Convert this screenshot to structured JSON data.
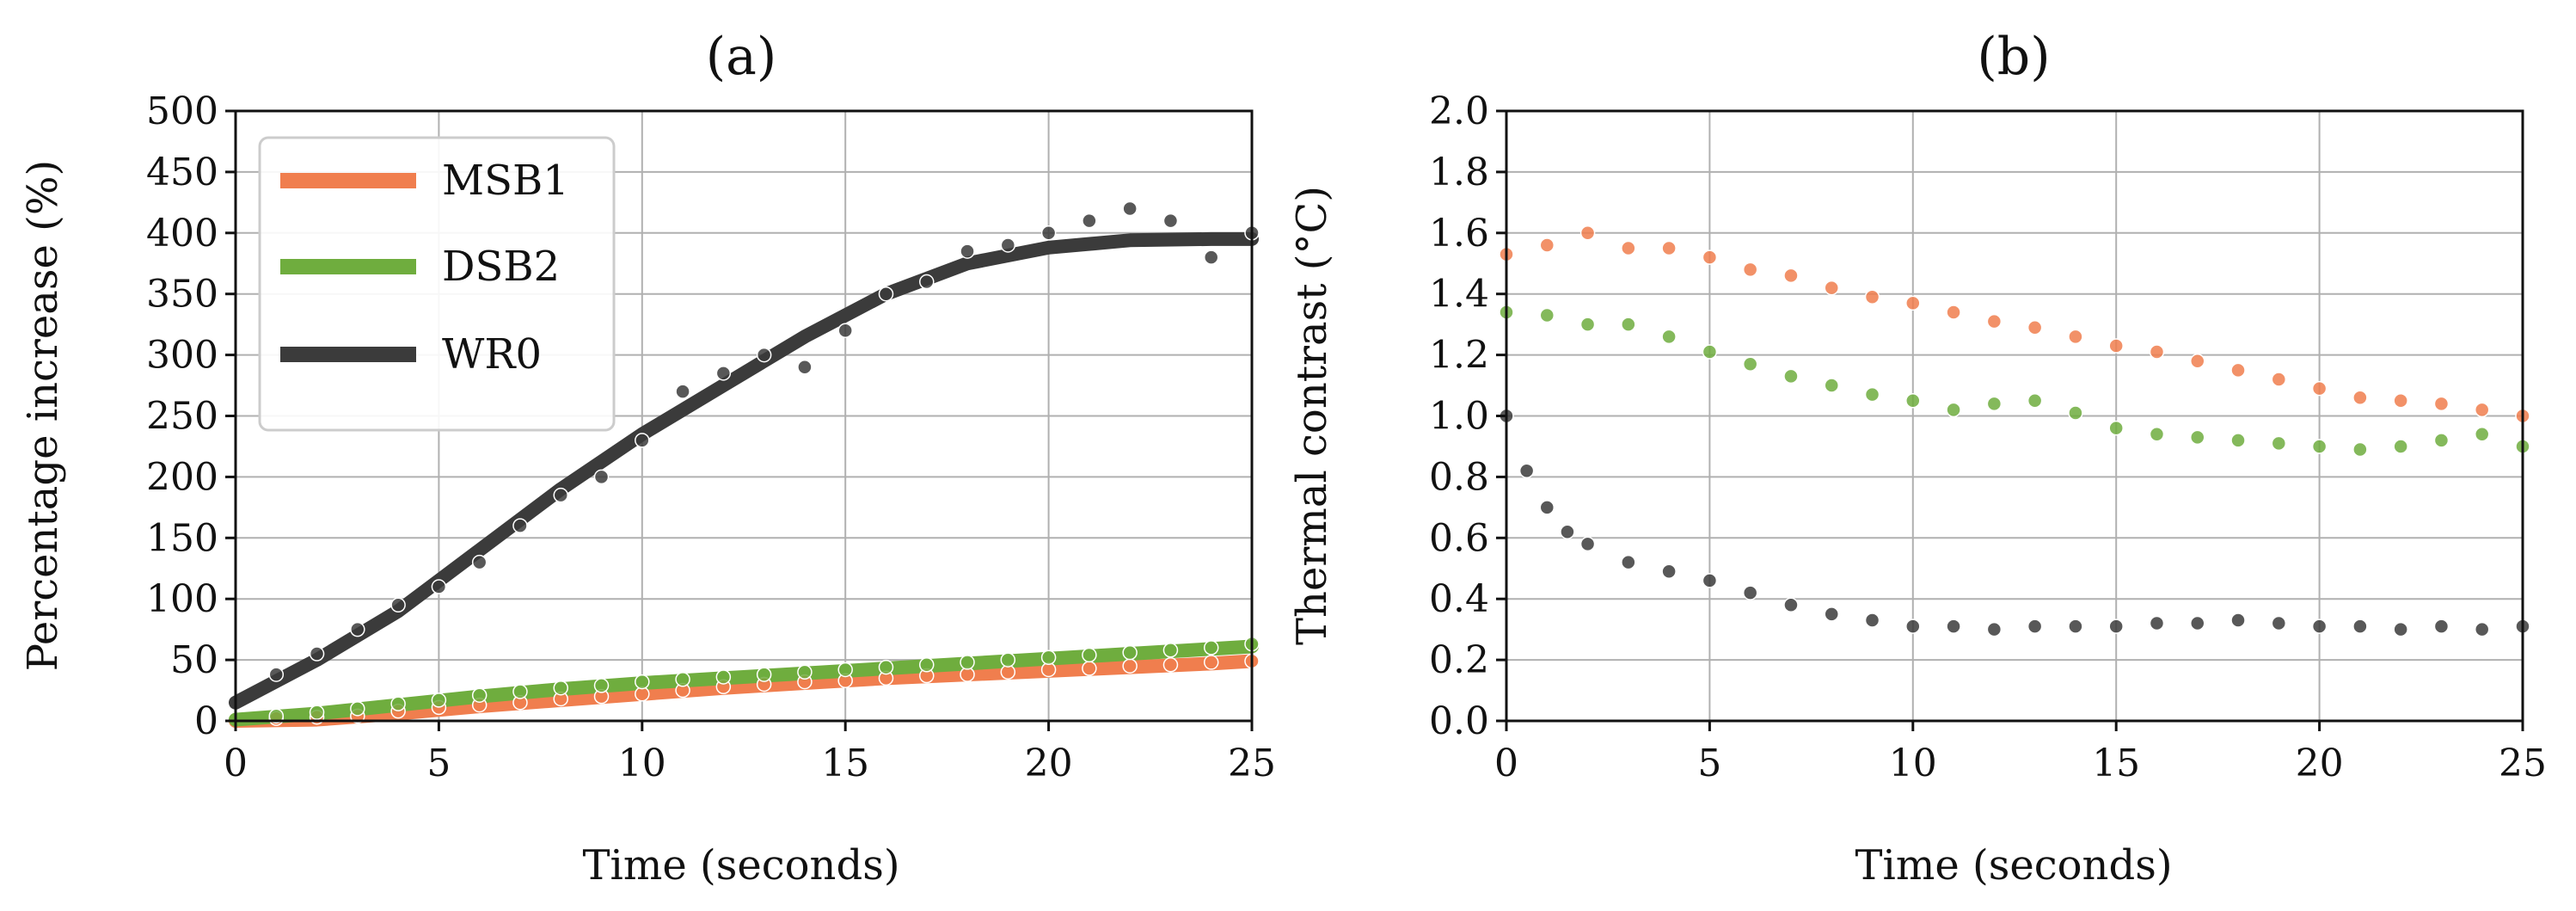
{
  "chart_data": [
    {
      "type": "scatter",
      "title": "(a)",
      "xlabel": "Time (seconds)",
      "ylabel": "Percentage increase (%)",
      "xlim": [
        0,
        25
      ],
      "ylim": [
        0,
        500
      ],
      "xticks": [
        "0",
        "5",
        "10",
        "15",
        "20",
        "25"
      ],
      "yticks": [
        "0",
        "50",
        "100",
        "150",
        "200",
        "250",
        "300",
        "350",
        "400",
        "450",
        "500"
      ],
      "grid": true,
      "legend_position": "top-left",
      "fit_lines": true,
      "series": [
        {
          "name": "MSB1",
          "color": "#f07e4e",
          "fit": {
            "t": [
              0,
              2,
              4,
              6,
              8,
              10,
              12,
              14,
              16,
              18,
              20,
              22,
              24,
              25
            ],
            "y": [
              0,
              1,
              6,
              12,
              17,
              22,
              27,
              31,
              35,
              38,
              41,
              44,
              47,
              49
            ]
          },
          "points": {
            "t": [
              1,
              2,
              3,
              4,
              5,
              6,
              7,
              8,
              9,
              10,
              11,
              12,
              13,
              14,
              15,
              16,
              17,
              18,
              19,
              20,
              21,
              22,
              23,
              24,
              25
            ],
            "y": [
              2,
              3,
              4,
              8,
              11,
              13,
              15,
              18,
              20,
              22,
              25,
              28,
              30,
              32,
              33,
              35,
              37,
              38,
              40,
              42,
              43,
              45,
              46,
              48,
              49
            ]
          }
        },
        {
          "name": "DSB2",
          "color": "#6fad3e",
          "fit": {
            "t": [
              0,
              2,
              4,
              6,
              8,
              10,
              12,
              14,
              16,
              18,
              20,
              22,
              24,
              25
            ],
            "y": [
              1,
              6,
              13,
              20,
              26,
              31,
              35,
              39,
              43,
              47,
              51,
              55,
              59,
              61
            ]
          },
          "points": {
            "t": [
              1,
              2,
              3,
              4,
              5,
              6,
              7,
              8,
              9,
              10,
              11,
              12,
              13,
              14,
              15,
              16,
              17,
              18,
              19,
              20,
              21,
              22,
              23,
              24,
              25
            ],
            "y": [
              4,
              7,
              10,
              14,
              17,
              21,
              24,
              27,
              29,
              32,
              34,
              36,
              38,
              40,
              42,
              44,
              46,
              48,
              50,
              52,
              54,
              56,
              58,
              60,
              63
            ]
          }
        },
        {
          "name": "WR0",
          "color": "#3b3b3b",
          "fit": {
            "t": [
              0,
              2,
              4,
              6,
              8,
              10,
              12,
              14,
              16,
              18,
              20,
              22,
              24,
              25
            ],
            "y": [
              15,
              50,
              90,
              140,
              190,
              235,
              275,
              315,
              350,
              375,
              388,
              394,
              395,
              395
            ]
          },
          "points": {
            "t": [
              1,
              2,
              3,
              4,
              5,
              6,
              7,
              8,
              9,
              10,
              11,
              12,
              13,
              14,
              15,
              16,
              17,
              18,
              19,
              20,
              21,
              22,
              23,
              24,
              25
            ],
            "y": [
              38,
              55,
              75,
              95,
              110,
              130,
              160,
              185,
              200,
              230,
              270,
              285,
              300,
              290,
              320,
              350,
              360,
              385,
              390,
              400,
              410,
              420,
              410,
              380,
              400
            ]
          }
        }
      ]
    },
    {
      "type": "scatter",
      "title": "(b)",
      "xlabel": "Time (seconds)",
      "ylabel": "Thermal contrast (°C)",
      "xlim": [
        0,
        25
      ],
      "ylim": [
        0,
        2.0
      ],
      "xticks": [
        "0",
        "5",
        "10",
        "15",
        "20",
        "25"
      ],
      "yticks": [
        "0.0",
        "0.2",
        "0.4",
        "0.6",
        "0.8",
        "1.0",
        "1.2",
        "1.4",
        "1.6",
        "1.8",
        "2.0"
      ],
      "grid": true,
      "fit_lines": false,
      "series": [
        {
          "name": "MSB1",
          "color": "#f07e4e",
          "points": {
            "t": [
              0,
              1,
              2,
              3,
              4,
              5,
              6,
              7,
              8,
              9,
              10,
              11,
              12,
              13,
              14,
              15,
              16,
              17,
              18,
              19,
              20,
              21,
              22,
              23,
              24,
              25
            ],
            "y": [
              1.53,
              1.56,
              1.6,
              1.55,
              1.55,
              1.52,
              1.48,
              1.46,
              1.42,
              1.39,
              1.37,
              1.34,
              1.31,
              1.29,
              1.26,
              1.23,
              1.21,
              1.18,
              1.15,
              1.12,
              1.09,
              1.06,
              1.05,
              1.04,
              1.02,
              1.0
            ]
          }
        },
        {
          "name": "DSB2",
          "color": "#6fad3e",
          "points": {
            "t": [
              0,
              1,
              2,
              3,
              4,
              5,
              6,
              7,
              8,
              9,
              10,
              11,
              12,
              13,
              14,
              15,
              16,
              17,
              18,
              19,
              20,
              21,
              22,
              23,
              24,
              25
            ],
            "y": [
              1.34,
              1.33,
              1.3,
              1.3,
              1.26,
              1.21,
              1.17,
              1.13,
              1.1,
              1.07,
              1.05,
              1.02,
              1.04,
              1.05,
              1.01,
              0.96,
              0.94,
              0.93,
              0.92,
              0.91,
              0.9,
              0.89,
              0.9,
              0.92,
              0.94,
              0.9
            ]
          }
        },
        {
          "name": "WR0",
          "color": "#3b3b3b",
          "points": {
            "t": [
              0,
              0.5,
              1,
              1.5,
              2,
              3,
              4,
              5,
              6,
              7,
              8,
              9,
              10,
              11,
              12,
              13,
              14,
              15,
              16,
              17,
              18,
              19,
              20,
              21,
              22,
              23,
              24,
              25
            ],
            "y": [
              1.0,
              0.82,
              0.7,
              0.62,
              0.58,
              0.52,
              0.49,
              0.46,
              0.42,
              0.38,
              0.35,
              0.33,
              0.31,
              0.31,
              0.3,
              0.31,
              0.31,
              0.31,
              0.32,
              0.32,
              0.33,
              0.32,
              0.31,
              0.31,
              0.3,
              0.31,
              0.3,
              0.31
            ]
          }
        }
      ]
    }
  ]
}
